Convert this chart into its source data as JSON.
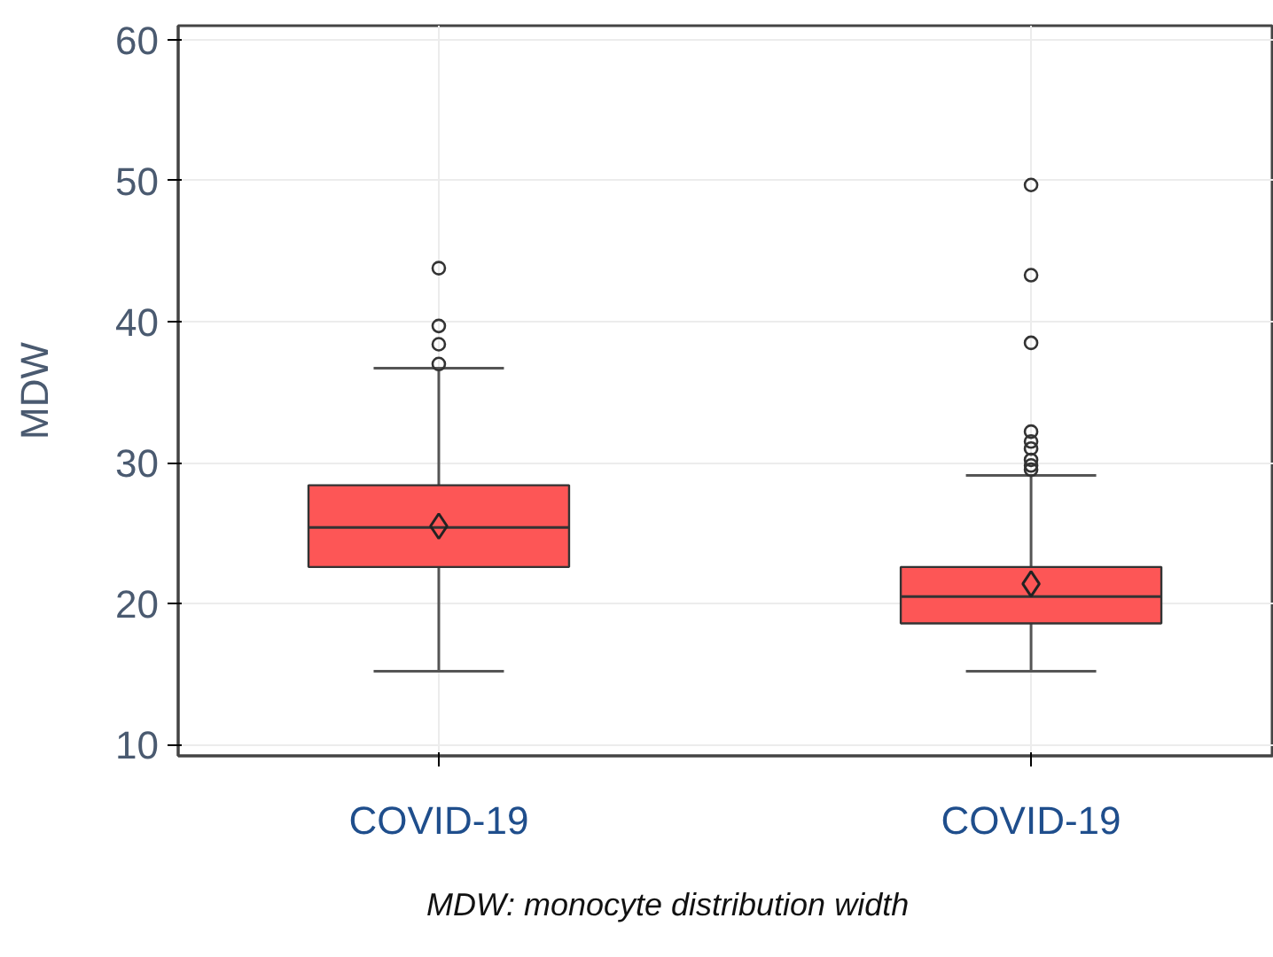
{
  "chart_data": {
    "type": "box",
    "ylabel": "MDW",
    "categories": [
      "COVID-19",
      "COVID-19"
    ],
    "color": "#fd5656",
    "boxes": [
      {
        "low": 15.2,
        "q1": 22.6,
        "median": 25.4,
        "q3": 28.4,
        "high": 36.7,
        "mean": 25.5,
        "outliers": [
          37.0,
          38.4,
          39.7,
          43.8
        ]
      },
      {
        "low": 15.2,
        "q1": 18.6,
        "median": 20.5,
        "q3": 22.6,
        "high": 29.1,
        "mean": 21.4,
        "outliers": [
          29.5,
          29.8,
          30.2,
          31.0,
          31.5,
          32.2,
          38.5,
          43.3,
          49.7
        ]
      }
    ],
    "ylim": [
      9.2,
      61
    ],
    "yticks": [
      10,
      20,
      30,
      40,
      50,
      60
    ],
    "grid": true,
    "marker": "circle",
    "annotations": [
      "MDW: monocyte distribution width"
    ]
  }
}
